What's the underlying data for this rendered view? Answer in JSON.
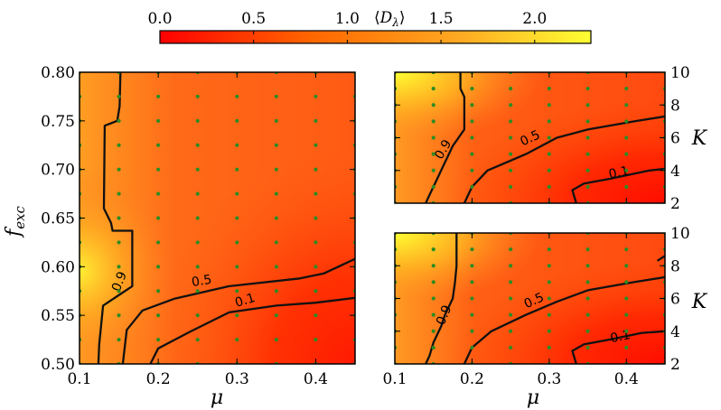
{
  "colorbar": {
    "label": "⟨D_λ⟩",
    "range": [
      0.0,
      2.3
    ],
    "ticks": [
      "0.0",
      "0.5",
      "1.0",
      "1.5",
      "2.0"
    ],
    "tick_values": [
      0.0,
      0.5,
      1.0,
      1.5,
      2.0
    ],
    "colormap": [
      "#ff0000",
      "#ff7700",
      "#ffaa22",
      "#ffff33"
    ]
  },
  "chart_data": [
    {
      "type": "heatmap",
      "panel": "left",
      "xlabel": "μ",
      "ylabel": "f_exc",
      "xlim": [
        0.1,
        0.45
      ],
      "ylim": [
        0.5,
        0.8
      ],
      "xticks": [
        "0.1",
        "0.2",
        "0.3",
        "0.4"
      ],
      "xtick_values": [
        0.1,
        0.2,
        0.3,
        0.4
      ],
      "yticks": [
        "0.50",
        "0.55",
        "0.60",
        "0.65",
        "0.70",
        "0.75",
        "0.80"
      ],
      "ytick_values": [
        0.5,
        0.55,
        0.6,
        0.65,
        0.7,
        0.75,
        0.8
      ],
      "sample_points": {
        "x": [
          0.1,
          0.15,
          0.2,
          0.25,
          0.3,
          0.35,
          0.4,
          0.45
        ],
        "y": [
          0.5,
          0.525,
          0.55,
          0.575,
          0.6,
          0.625,
          0.65,
          0.675,
          0.7,
          0.725,
          0.75,
          0.775,
          0.8
        ]
      },
      "contours": [
        {
          "level": "0.9",
          "points": [
            [
              0.152,
              0.8
            ],
            [
              0.151,
              0.765
            ],
            [
              0.148,
              0.75
            ],
            [
              0.132,
              0.745
            ],
            [
              0.131,
              0.66
            ],
            [
              0.14,
              0.645
            ],
            [
              0.142,
              0.637
            ],
            [
              0.167,
              0.637
            ],
            [
              0.167,
              0.58
            ],
            [
              0.13,
              0.56
            ],
            [
              0.125,
              0.52
            ],
            [
              0.124,
              0.5
            ]
          ],
          "label_at": [
            0.15,
            0.585
          ]
        },
        {
          "level": "0.5",
          "points": [
            [
              0.155,
              0.5
            ],
            [
              0.16,
              0.535
            ],
            [
              0.18,
              0.555
            ],
            [
              0.22,
              0.567
            ],
            [
              0.29,
              0.58
            ],
            [
              0.38,
              0.588
            ],
            [
              0.41,
              0.593
            ],
            [
              0.45,
              0.608
            ]
          ],
          "label_at": [
            0.255,
            0.586
          ]
        },
        {
          "level": "0.1",
          "points": [
            [
              0.19,
              0.5
            ],
            [
              0.2,
              0.516
            ],
            [
              0.24,
              0.533
            ],
            [
              0.29,
              0.553
            ],
            [
              0.35,
              0.56
            ],
            [
              0.4,
              0.563
            ],
            [
              0.45,
              0.568
            ]
          ],
          "label_at": [
            0.31,
            0.566
          ]
        }
      ]
    },
    {
      "type": "heatmap",
      "panel": "top-right",
      "xlabel": "",
      "ylabel": "K",
      "xlim": [
        0.1,
        0.45
      ],
      "ylim": [
        2,
        10
      ],
      "yticks": [
        "2",
        "4",
        "6",
        "8",
        "10"
      ],
      "ytick_values": [
        2,
        4,
        6,
        8,
        10
      ],
      "sample_points": {
        "x": [
          0.1,
          0.15,
          0.2,
          0.25,
          0.3,
          0.35,
          0.4,
          0.45
        ],
        "y": [
          2,
          3,
          4,
          5,
          6,
          7,
          8,
          9,
          10
        ]
      },
      "contours": [
        {
          "level": "0.9",
          "points": [
            [
              0.185,
              10
            ],
            [
              0.185,
              9
            ],
            [
              0.19,
              8.5
            ],
            [
              0.19,
              6.5
            ],
            [
              0.175,
              5.5
            ],
            [
              0.165,
              4.5
            ],
            [
              0.155,
              3.5
            ],
            [
              0.145,
              2.5
            ],
            [
              0.14,
              2
            ]
          ],
          "label_at": [
            0.162,
            5.3
          ]
        },
        {
          "level": "0.5",
          "points": [
            [
              0.19,
              2
            ],
            [
              0.2,
              3
            ],
            [
              0.22,
              4
            ],
            [
              0.27,
              5
            ],
            [
              0.31,
              6
            ],
            [
              0.35,
              6.5
            ],
            [
              0.41,
              7
            ],
            [
              0.45,
              7.3
            ]
          ],
          "label_at": [
            0.275,
            6.0
          ]
        },
        {
          "level": "0.1",
          "points": [
            [
              0.335,
              2
            ],
            [
              0.33,
              2.8
            ],
            [
              0.345,
              3.2
            ],
            [
              0.38,
              3.5
            ],
            [
              0.43,
              4
            ],
            [
              0.45,
              4.1
            ]
          ],
          "label_at": [
            0.39,
            3.9
          ]
        }
      ]
    },
    {
      "type": "heatmap",
      "panel": "bottom-right",
      "xlabel": "μ",
      "ylabel": "K",
      "xlim": [
        0.1,
        0.45
      ],
      "ylim": [
        2,
        10
      ],
      "xticks": [
        "0.1",
        "0.2",
        "0.3",
        "0.4"
      ],
      "xtick_values": [
        0.1,
        0.2,
        0.3,
        0.4
      ],
      "yticks": [
        "2",
        "4",
        "6",
        "8",
        "10"
      ],
      "ytick_values": [
        2,
        4,
        6,
        8,
        10
      ],
      "sample_points": {
        "x": [
          0.1,
          0.15,
          0.2,
          0.25,
          0.3,
          0.35,
          0.4,
          0.45
        ],
        "y": [
          2,
          3,
          4,
          5,
          6,
          7,
          8,
          9,
          10
        ]
      },
      "contours": [
        {
          "level": "0.9",
          "points": [
            [
              0.18,
              10
            ],
            [
              0.18,
              8
            ],
            [
              0.178,
              7
            ],
            [
              0.175,
              6
            ],
            [
              0.165,
              5
            ],
            [
              0.16,
              4.3
            ],
            [
              0.15,
              3.3
            ],
            [
              0.145,
              2.5
            ],
            [
              0.14,
              2
            ]
          ],
          "label_at": [
            0.163,
            5.0
          ]
        },
        {
          "level": "0.5",
          "points": [
            [
              0.19,
              2
            ],
            [
              0.2,
              3
            ],
            [
              0.225,
              4
            ],
            [
              0.27,
              5
            ],
            [
              0.31,
              5.8
            ],
            [
              0.35,
              6.5
            ],
            [
              0.41,
              7
            ],
            [
              0.45,
              7.3
            ]
          ],
          "label_at": [
            0.28,
            5.9
          ]
        },
        {
          "level": "0.1",
          "points": [
            [
              0.335,
              2
            ],
            [
              0.33,
              2.8
            ],
            [
              0.345,
              3.2
            ],
            [
              0.38,
              3.5
            ],
            [
              0.42,
              3.9
            ],
            [
              0.45,
              4
            ]
          ],
          "label_at": [
            0.392,
            3.7
          ]
        },
        {
          "level": "",
          "points": [
            [
              0.44,
              8.3
            ],
            [
              0.45,
              8.6
            ]
          ],
          "label_at": null
        }
      ]
    }
  ]
}
